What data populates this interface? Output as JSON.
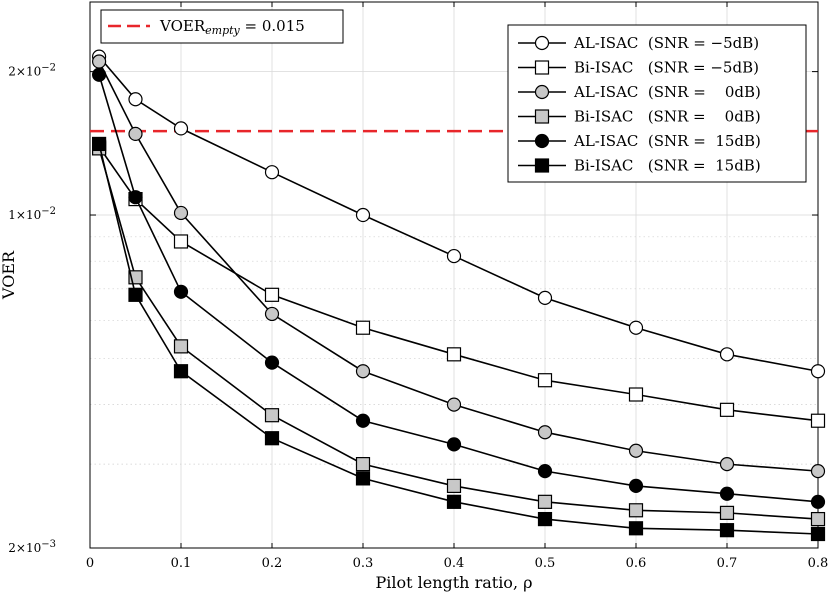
{
  "chart_data": {
    "type": "line",
    "xlabel": "Pilot length ratio, ρ",
    "ylabel": "VOER",
    "xlim": [
      0,
      0.8
    ],
    "ylim": [
      0.002,
      0.028
    ],
    "yscale": "log",
    "grid": true,
    "legend_placement": "top-right",
    "xticks": [
      0,
      0.1,
      0.2,
      0.3,
      0.4,
      0.5,
      0.6,
      0.7,
      0.8
    ],
    "xtick_labels": [
      "0",
      "0.1",
      "0.2",
      "0.3",
      "0.4",
      "0.5",
      "0.6",
      "0.7",
      "0.8"
    ],
    "yticks": [
      {
        "base": "2×10",
        "exp": "−3",
        "value": 0.002
      },
      {
        "base": "1×10",
        "exp": "−2",
        "value": 0.01
      },
      {
        "base": "2×10",
        "exp": "−2",
        "value": 0.02
      }
    ],
    "reference_line": {
      "value": 0.015,
      "color": "#e8262b",
      "label_main": "VOER",
      "label_sub": "empty",
      "label_tail": " = 0.015"
    },
    "x": [
      0.01,
      0.05,
      0.1,
      0.2,
      0.3,
      0.4,
      0.5,
      0.6,
      0.7,
      0.8
    ],
    "series": [
      {
        "name": "AL-ISAC  (SNR = −5dB)",
        "marker": "circle",
        "fill": "#ffffff",
        "values": [
          0.0215,
          0.0175,
          0.0152,
          0.0123,
          0.01,
          0.0082,
          0.0067,
          0.0058,
          0.0051,
          0.0047
        ]
      },
      {
        "name": "Bi-ISAC   (SNR = −5dB)",
        "marker": "square",
        "fill": "#ffffff",
        "values": [
          0.0139,
          0.0108,
          0.0088,
          0.0068,
          0.0058,
          0.0051,
          0.0045,
          0.0042,
          0.0039,
          0.0037
        ]
      },
      {
        "name": "AL-ISAC  (SNR =    0dB)",
        "marker": "circle",
        "fill": "#c8c8c8",
        "values": [
          0.021,
          0.0148,
          0.0101,
          0.0062,
          0.0047,
          0.004,
          0.0035,
          0.0032,
          0.003,
          0.0029
        ]
      },
      {
        "name": "Bi-ISAC   (SNR =    0dB)",
        "marker": "square",
        "fill": "#c8c8c8",
        "values": [
          0.0138,
          0.0074,
          0.0053,
          0.0038,
          0.003,
          0.0027,
          0.0025,
          0.0024,
          0.00237,
          0.0023
        ]
      },
      {
        "name": "AL-ISAC  (SNR =  15dB)",
        "marker": "circle",
        "fill": "#000000",
        "values": [
          0.0197,
          0.0109,
          0.0069,
          0.0049,
          0.0037,
          0.0033,
          0.0029,
          0.0027,
          0.0026,
          0.0025
        ]
      },
      {
        "name": "Bi-ISAC   (SNR =  15dB)",
        "marker": "square",
        "fill": "#000000",
        "values": [
          0.0141,
          0.0068,
          0.0047,
          0.0034,
          0.0028,
          0.0025,
          0.0023,
          0.0022,
          0.00218,
          0.00214
        ]
      }
    ]
  }
}
